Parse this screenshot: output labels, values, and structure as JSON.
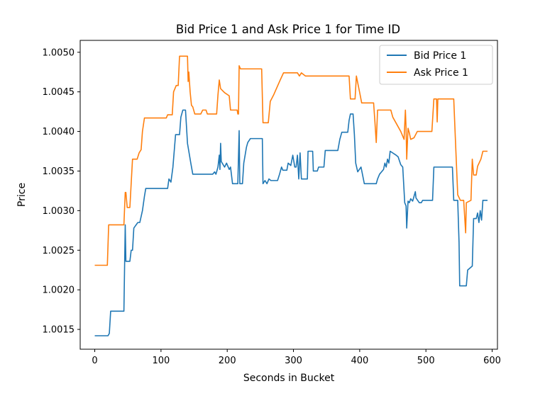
{
  "chart_data": {
    "type": "line",
    "title": "Bid Price 1 and Ask Price 1 for Time ID",
    "xlabel": "Seconds in Bucket",
    "ylabel": "Price",
    "xlim": [
      -22,
      608
    ],
    "ylim": [
      1.00125,
      1.00515
    ],
    "xticks": [
      0,
      100,
      200,
      300,
      400,
      500,
      600
    ],
    "yticks": [
      1.0015,
      1.002,
      1.0025,
      1.003,
      1.0035,
      1.004,
      1.0045,
      1.005
    ],
    "ytick_labels": [
      "1.0015",
      "1.0020",
      "1.0025",
      "1.0030",
      "1.0035",
      "1.0040",
      "1.0045",
      "1.0050"
    ],
    "grid": false,
    "legend_position": "top-right",
    "series": [
      {
        "name": "Bid Price 1",
        "color": "#1f77b4",
        "points": [
          [
            0,
            1.00142
          ],
          [
            20,
            1.00142
          ],
          [
            22,
            1.00145
          ],
          [
            24,
            1.00173
          ],
          [
            44,
            1.00173
          ],
          [
            46,
            1.00282
          ],
          [
            47,
            1.00236
          ],
          [
            53,
            1.00236
          ],
          [
            55,
            1.0025
          ],
          [
            57,
            1.0025
          ],
          [
            59,
            1.00278
          ],
          [
            65,
            1.00285
          ],
          [
            68,
            1.00285
          ],
          [
            72,
            1.003
          ],
          [
            75,
            1.00318
          ],
          [
            77,
            1.00328
          ],
          [
            110,
            1.00328
          ],
          [
            112,
            1.0034
          ],
          [
            115,
            1.00336
          ],
          [
            118,
            1.00355
          ],
          [
            122,
            1.00396
          ],
          [
            128,
            1.00396
          ],
          [
            130,
            1.00418
          ],
          [
            133,
            1.00427
          ],
          [
            137,
            1.00427
          ],
          [
            140,
            1.00385
          ],
          [
            145,
            1.0036
          ],
          [
            148,
            1.00346
          ],
          [
            178,
            1.00346
          ],
          [
            181,
            1.00349
          ],
          [
            183,
            1.00346
          ],
          [
            186,
            1.00355
          ],
          [
            188,
            1.0037
          ],
          [
            189,
            1.00352
          ],
          [
            190,
            1.00385
          ],
          [
            191,
            1.00362
          ],
          [
            196,
            1.00355
          ],
          [
            199,
            1.0036
          ],
          [
            203,
            1.00352
          ],
          [
            205,
            1.00355
          ],
          [
            208,
            1.00334
          ],
          [
            216,
            1.00334
          ],
          [
            218,
            1.00401
          ],
          [
            219,
            1.00334
          ],
          [
            223,
            1.00334
          ],
          [
            225,
            1.0036
          ],
          [
            227,
            1.0037
          ],
          [
            229,
            1.0038
          ],
          [
            231,
            1.00386
          ],
          [
            235,
            1.00391
          ],
          [
            253,
            1.00391
          ],
          [
            254,
            1.00334
          ],
          [
            257,
            1.00338
          ],
          [
            260,
            1.00334
          ],
          [
            263,
            1.0034
          ],
          [
            266,
            1.00338
          ],
          [
            276,
            1.00338
          ],
          [
            279,
            1.00346
          ],
          [
            282,
            1.00355
          ],
          [
            284,
            1.00351
          ],
          [
            290,
            1.00351
          ],
          [
            292,
            1.0036
          ],
          [
            296,
            1.00357
          ],
          [
            299,
            1.0037
          ],
          [
            302,
            1.00355
          ],
          [
            304,
            1.00355
          ],
          [
            306,
            1.0037
          ],
          [
            308,
            1.0034
          ],
          [
            310,
            1.00373
          ],
          [
            312,
            1.0034
          ],
          [
            321,
            1.0034
          ],
          [
            322,
            1.00375
          ],
          [
            329,
            1.00375
          ],
          [
            330,
            1.0035
          ],
          [
            336,
            1.0035
          ],
          [
            338,
            1.00355
          ],
          [
            346,
            1.00355
          ],
          [
            348,
            1.00376
          ],
          [
            367,
            1.00376
          ],
          [
            370,
            1.0039
          ],
          [
            373,
            1.00399
          ],
          [
            382,
            1.00399
          ],
          [
            384,
            1.00414
          ],
          [
            386,
            1.00422
          ],
          [
            390,
            1.00422
          ],
          [
            392,
            1.00396
          ],
          [
            394,
            1.0036
          ],
          [
            397,
            1.00349
          ],
          [
            402,
            1.00355
          ],
          [
            407,
            1.00334
          ],
          [
            425,
            1.00334
          ],
          [
            427,
            1.0034
          ],
          [
            430,
            1.00346
          ],
          [
            436,
            1.00352
          ],
          [
            438,
            1.0036
          ],
          [
            440,
            1.00355
          ],
          [
            442,
            1.00365
          ],
          [
            444,
            1.0036
          ],
          [
            446,
            1.00375
          ],
          [
            455,
            1.0037
          ],
          [
            458,
            1.00368
          ],
          [
            462,
            1.00358
          ],
          [
            465,
            1.00355
          ],
          [
            468,
            1.0031
          ],
          [
            470,
            1.00306
          ],
          [
            471,
            1.00278
          ],
          [
            473,
            1.00312
          ],
          [
            475,
            1.0031
          ],
          [
            477,
            1.00315
          ],
          [
            480,
            1.00312
          ],
          [
            482,
            1.00318
          ],
          [
            484,
            1.00324
          ],
          [
            485,
            1.00316
          ],
          [
            490,
            1.0031
          ],
          [
            493,
            1.0031
          ],
          [
            495,
            1.00313
          ],
          [
            510,
            1.00313
          ],
          [
            512,
            1.00355
          ],
          [
            540,
            1.00355
          ],
          [
            542,
            1.00313
          ],
          [
            548,
            1.00313
          ],
          [
            550,
            1.0026
          ],
          [
            551,
            1.00205
          ],
          [
            561,
            1.00205
          ],
          [
            563,
            1.00225
          ],
          [
            570,
            1.0023
          ],
          [
            572,
            1.0029
          ],
          [
            576,
            1.0029
          ],
          [
            578,
            1.00297
          ],
          [
            580,
            1.00285
          ],
          [
            582,
            1.003
          ],
          [
            584,
            1.00288
          ],
          [
            586,
            1.00313
          ],
          [
            593,
            1.00313
          ]
        ]
      },
      {
        "name": "Ask Price 1",
        "color": "#ff7f0e",
        "points": [
          [
            0,
            1.00231
          ],
          [
            19,
            1.00231
          ],
          [
            21,
            1.00282
          ],
          [
            44,
            1.00282
          ],
          [
            46,
            1.00323
          ],
          [
            47,
            1.00323
          ],
          [
            49,
            1.00304
          ],
          [
            53,
            1.00304
          ],
          [
            57,
            1.00365
          ],
          [
            64,
            1.00365
          ],
          [
            67,
            1.00373
          ],
          [
            70,
            1.00377
          ],
          [
            72,
            1.004
          ],
          [
            75,
            1.00417
          ],
          [
            108,
            1.00417
          ],
          [
            110,
            1.00421
          ],
          [
            117,
            1.00421
          ],
          [
            119,
            1.0045
          ],
          [
            123,
            1.00458
          ],
          [
            126,
            1.00458
          ],
          [
            128,
            1.00495
          ],
          [
            140,
            1.00495
          ],
          [
            141,
            1.00463
          ],
          [
            142,
            1.00475
          ],
          [
            144,
            1.0045
          ],
          [
            146,
            1.00433
          ],
          [
            148,
            1.00431
          ],
          [
            151,
            1.00422
          ],
          [
            160,
            1.00422
          ],
          [
            163,
            1.00427
          ],
          [
            168,
            1.00427
          ],
          [
            170,
            1.00422
          ],
          [
            184,
            1.00422
          ],
          [
            186,
            1.00446
          ],
          [
            188,
            1.00465
          ],
          [
            190,
            1.00454
          ],
          [
            196,
            1.00449
          ],
          [
            203,
            1.00445
          ],
          [
            205,
            1.00427
          ],
          [
            210,
            1.00427
          ],
          [
            215,
            1.00427
          ],
          [
            216,
            1.00422
          ],
          [
            217,
            1.00422
          ],
          [
            218,
            1.00483
          ],
          [
            220,
            1.00479
          ],
          [
            252,
            1.00479
          ],
          [
            254,
            1.00411
          ],
          [
            262,
            1.00411
          ],
          [
            265,
            1.00438
          ],
          [
            270,
            1.00446
          ],
          [
            280,
            1.00465
          ],
          [
            285,
            1.00474
          ],
          [
            306,
            1.00474
          ],
          [
            309,
            1.0047
          ],
          [
            312,
            1.00474
          ],
          [
            318,
            1.0047
          ],
          [
            384,
            1.0047
          ],
          [
            386,
            1.00441
          ],
          [
            393,
            1.00441
          ],
          [
            395,
            1.0047
          ],
          [
            400,
            1.00449
          ],
          [
            403,
            1.00436
          ],
          [
            421,
            1.00436
          ],
          [
            423,
            1.00412
          ],
          [
            425,
            1.00386
          ],
          [
            427,
            1.00427
          ],
          [
            447,
            1.00427
          ],
          [
            450,
            1.00418
          ],
          [
            462,
            1.004
          ],
          [
            467,
            1.0039
          ],
          [
            469,
            1.00427
          ],
          [
            470,
            1.00405
          ],
          [
            471,
            1.00365
          ],
          [
            473,
            1.00404
          ],
          [
            475,
            1.00398
          ],
          [
            477,
            1.0039
          ],
          [
            482,
            1.00392
          ],
          [
            487,
            1.004
          ],
          [
            509,
            1.004
          ],
          [
            512,
            1.00441
          ],
          [
            516,
            1.00441
          ],
          [
            517,
            1.00412
          ],
          [
            518,
            1.00441
          ],
          [
            542,
            1.00441
          ],
          [
            544,
            1.004
          ],
          [
            546,
            1.0036
          ],
          [
            548,
            1.0032
          ],
          [
            552,
            1.00313
          ],
          [
            557,
            1.00313
          ],
          [
            560,
            1.00272
          ],
          [
            561,
            1.0031
          ],
          [
            568,
            1.00313
          ],
          [
            570,
            1.00365
          ],
          [
            572,
            1.00345
          ],
          [
            576,
            1.00345
          ],
          [
            578,
            1.00356
          ],
          [
            583,
            1.00365
          ],
          [
            586,
            1.00375
          ],
          [
            593,
            1.00375
          ]
        ]
      }
    ]
  }
}
